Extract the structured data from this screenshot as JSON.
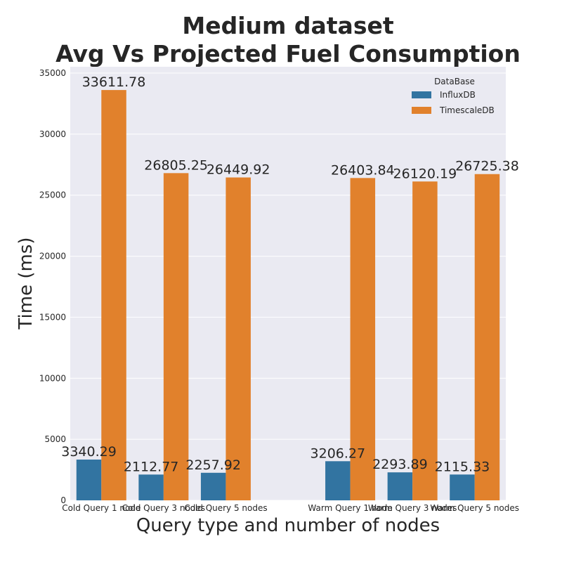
{
  "chart_data": {
    "type": "bar",
    "title_lines": [
      "Medium dataset",
      "Avg Vs Projected Fuel Consumption"
    ],
    "xlabel": "Query type and number of nodes",
    "ylabel": "Time (ms)",
    "ylim": [
      0,
      35000
    ],
    "yticks": [
      0,
      5000,
      10000,
      15000,
      20000,
      25000,
      30000,
      35000
    ],
    "grid": true,
    "categories": [
      "Cold Query 1 node",
      "Cold Query 3 nodes",
      "Cold Query 5 nodes",
      "",
      "Warm Query 1 node",
      "Warm Query 3 nodes",
      "Warm Query 5 nodes"
    ],
    "legend": {
      "title": "DataBase",
      "placement": "top-right"
    },
    "series": [
      {
        "name": "InfluxDB",
        "color": "#3274a1",
        "values": [
          3340.29,
          2112.77,
          2257.92,
          null,
          3206.27,
          2293.89,
          2115.33
        ],
        "labels": [
          "3340.29",
          "2112.77",
          "2257.92",
          "",
          "3206.27",
          "2293.89",
          "2115.33"
        ]
      },
      {
        "name": "TimescaleDB",
        "color": "#e1812c",
        "values": [
          33611.78,
          26805.25,
          26449.92,
          null,
          26403.84,
          26120.19,
          26725.38
        ],
        "labels": [
          "33611.78",
          "26805.25",
          "26449.92",
          "",
          "26403.84",
          "26120.19",
          "26725.38"
        ]
      }
    ]
  }
}
